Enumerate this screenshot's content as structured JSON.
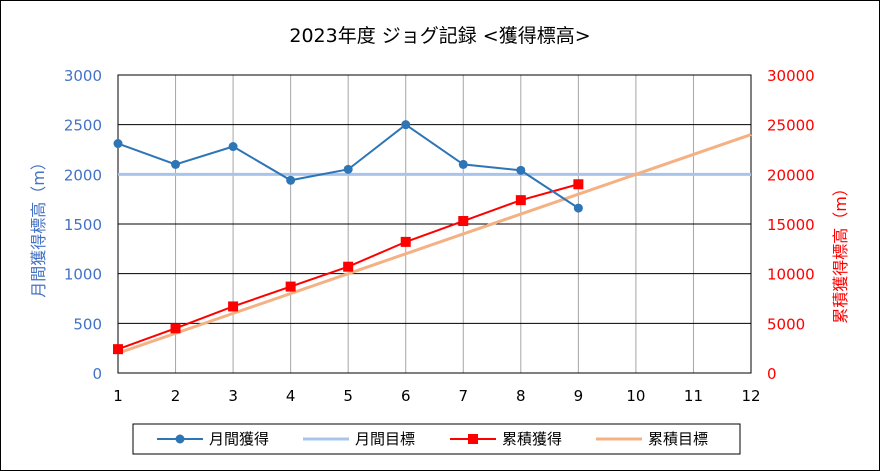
{
  "chart_data": {
    "type": "line",
    "title": "2023年度 ジョグ記録 <獲得標高>",
    "x": [
      1,
      2,
      3,
      4,
      5,
      6,
      7,
      8,
      9,
      10,
      11,
      12
    ],
    "xlim": [
      1,
      12
    ],
    "y_left": {
      "label": "月間獲得標高（m）",
      "lim": [
        0,
        3000
      ],
      "ticks": [
        0,
        500,
        1000,
        1500,
        2000,
        2500,
        3000
      ],
      "color": "#4472C4"
    },
    "y_right": {
      "label": "累積獲得標高（m）",
      "lim": [
        0,
        30000
      ],
      "ticks": [
        0,
        5000,
        10000,
        15000,
        20000,
        25000,
        30000
      ],
      "color": "#FF0000"
    },
    "series": [
      {
        "name": "月間獲得",
        "axis": "left",
        "color": "#2E75B6",
        "marker": "circle",
        "x": [
          1,
          2,
          3,
          4,
          5,
          6,
          7,
          8,
          9
        ],
        "values": [
          2310,
          2100,
          2280,
          1940,
          2050,
          2500,
          2100,
          2040,
          1660
        ]
      },
      {
        "name": "月間目標",
        "axis": "left",
        "color": "#A9C4EB",
        "marker": "none",
        "x": [
          1,
          12
        ],
        "values": [
          2000,
          2000
        ]
      },
      {
        "name": "累積獲得",
        "axis": "right",
        "color": "#FF0000",
        "marker": "square",
        "x": [
          1,
          2,
          3,
          4,
          5,
          6,
          7,
          8,
          9
        ],
        "values": [
          2400,
          4500,
          6700,
          8700,
          10700,
          13200,
          15300,
          17400,
          19000
        ]
      },
      {
        "name": "累積目標",
        "axis": "right",
        "color": "#F4B183",
        "marker": "none",
        "x": [
          1,
          12
        ],
        "values": [
          2000,
          24000
        ]
      }
    ],
    "grid": true,
    "legend_position": "bottom"
  }
}
